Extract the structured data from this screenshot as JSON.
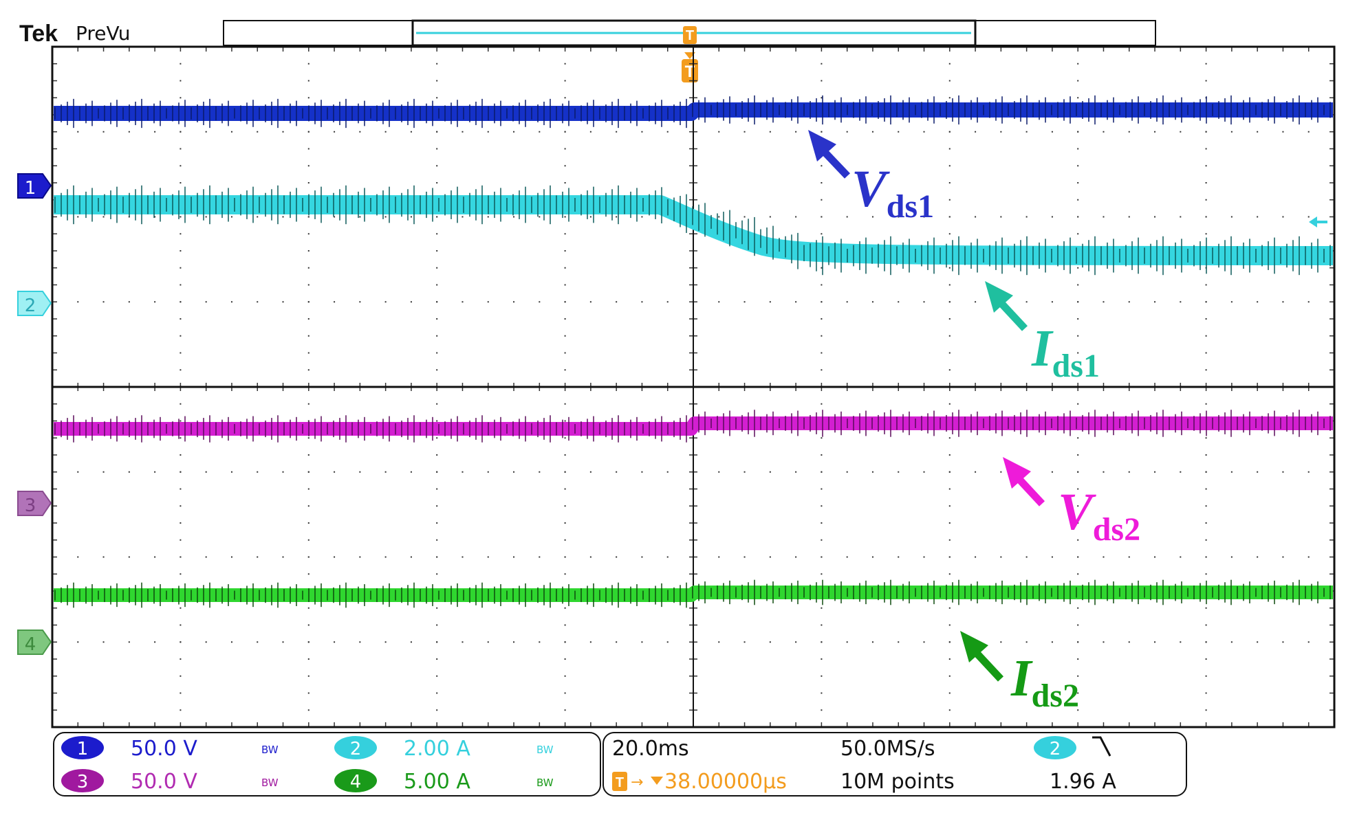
{
  "header": {
    "brand": "Tek",
    "mode": "PreVu"
  },
  "trigger": {
    "marker": "T"
  },
  "channels": [
    {
      "num": "1",
      "scale": "50.0 V",
      "bw": "BW",
      "color": "#1c1ccc"
    },
    {
      "num": "2",
      "scale": "2.00 A",
      "bw": "BW",
      "color": "#35d0dd"
    },
    {
      "num": "3",
      "scale": "50.0 V",
      "bw": "BW",
      "color": "#a0199f"
    },
    {
      "num": "4",
      "scale": "5.00 A",
      "bw": "BW",
      "color": "#1a9a1a"
    }
  ],
  "timebase": {
    "scale": "20.0ms",
    "sample_rate": "50.0MS/s",
    "delay": "38.00000µs",
    "record_length": "10M points",
    "trigger_source": "2",
    "trigger_level": "1.96 A"
  },
  "annotations": {
    "vds1": {
      "main": "V",
      "sub": "ds1",
      "color": "#2a33c9"
    },
    "ids1": {
      "main": "I",
      "sub": "ds1",
      "color": "#1fbf9f"
    },
    "vds2": {
      "main": "V",
      "sub": "ds2",
      "color": "#ee1bd9"
    },
    "ids2": {
      "main": "I",
      "sub": "ds2",
      "color": "#159a15"
    }
  },
  "traces": {
    "vds1_color": "#1531c8",
    "ids1_color": "#35d6e0",
    "vds2_color": "#d31fd1",
    "ids2_color": "#2fd62f"
  }
}
